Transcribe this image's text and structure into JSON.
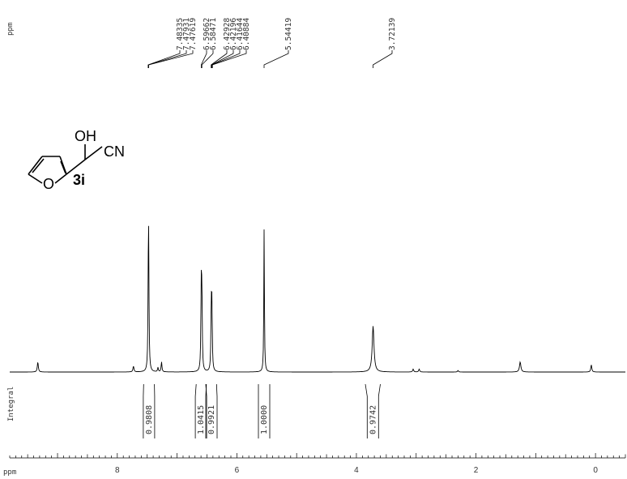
{
  "chart_data": {
    "type": "line",
    "ppm_label_top": "ppm",
    "ppm_label_bottom": "ppm",
    "integral_label": "Integral",
    "xlim": [
      9.8,
      -0.5
    ],
    "x_ticks": [
      8,
      6,
      4,
      2,
      0
    ],
    "x_tick_labels": [
      "8",
      "6",
      "4",
      "2",
      "0"
    ],
    "peak_labels": [
      "7.48335",
      "7.47931",
      "7.47619",
      "6.59662",
      "6.58471",
      "6.42928",
      "6.42196",
      "6.41644",
      "6.40884",
      "5.54419",
      "3.72139"
    ],
    "peaks": [
      {
        "x": 9.33,
        "h": 0.07,
        "w": 0.01
      },
      {
        "x": 7.73,
        "h": 0.04,
        "w": 0.01
      },
      {
        "x": 7.48,
        "h": 0.65,
        "w": 0.007
      },
      {
        "x": 7.475,
        "h": 0.55,
        "w": 0.007
      },
      {
        "x": 7.32,
        "h": 0.03,
        "w": 0.008
      },
      {
        "x": 7.26,
        "h": 0.07,
        "w": 0.008
      },
      {
        "x": 6.596,
        "h": 0.55,
        "w": 0.007
      },
      {
        "x": 6.585,
        "h": 0.52,
        "w": 0.007
      },
      {
        "x": 6.428,
        "h": 0.44,
        "w": 0.007
      },
      {
        "x": 6.417,
        "h": 0.42,
        "w": 0.007
      },
      {
        "x": 5.544,
        "h": 1.0,
        "w": 0.006
      },
      {
        "x": 3.721,
        "h": 0.32,
        "w": 0.018
      },
      {
        "x": 3.05,
        "h": 0.02,
        "w": 0.01
      },
      {
        "x": 2.95,
        "h": 0.02,
        "w": 0.01
      },
      {
        "x": 2.3,
        "h": 0.01,
        "w": 0.01
      },
      {
        "x": 1.26,
        "h": 0.07,
        "w": 0.014
      },
      {
        "x": 0.07,
        "h": 0.05,
        "w": 0.01
      }
    ],
    "integrals": [
      {
        "from": 7.56,
        "to": 7.38,
        "label": "0.9808"
      },
      {
        "from": 6.68,
        "to": 6.52,
        "label": "1.0415"
      },
      {
        "from": 6.51,
        "to": 6.34,
        "label": "0.9921"
      },
      {
        "from": 5.64,
        "to": 5.45,
        "label": "1.0000"
      },
      {
        "from": 3.85,
        "to": 3.6,
        "label": "0.9742"
      }
    ]
  },
  "structure": {
    "oh_label": "OH",
    "cn_label": "CN",
    "o_label": "O",
    "compound_label": "3i"
  },
  "colors": {
    "spectrum": "#000000",
    "text": "#333333"
  }
}
